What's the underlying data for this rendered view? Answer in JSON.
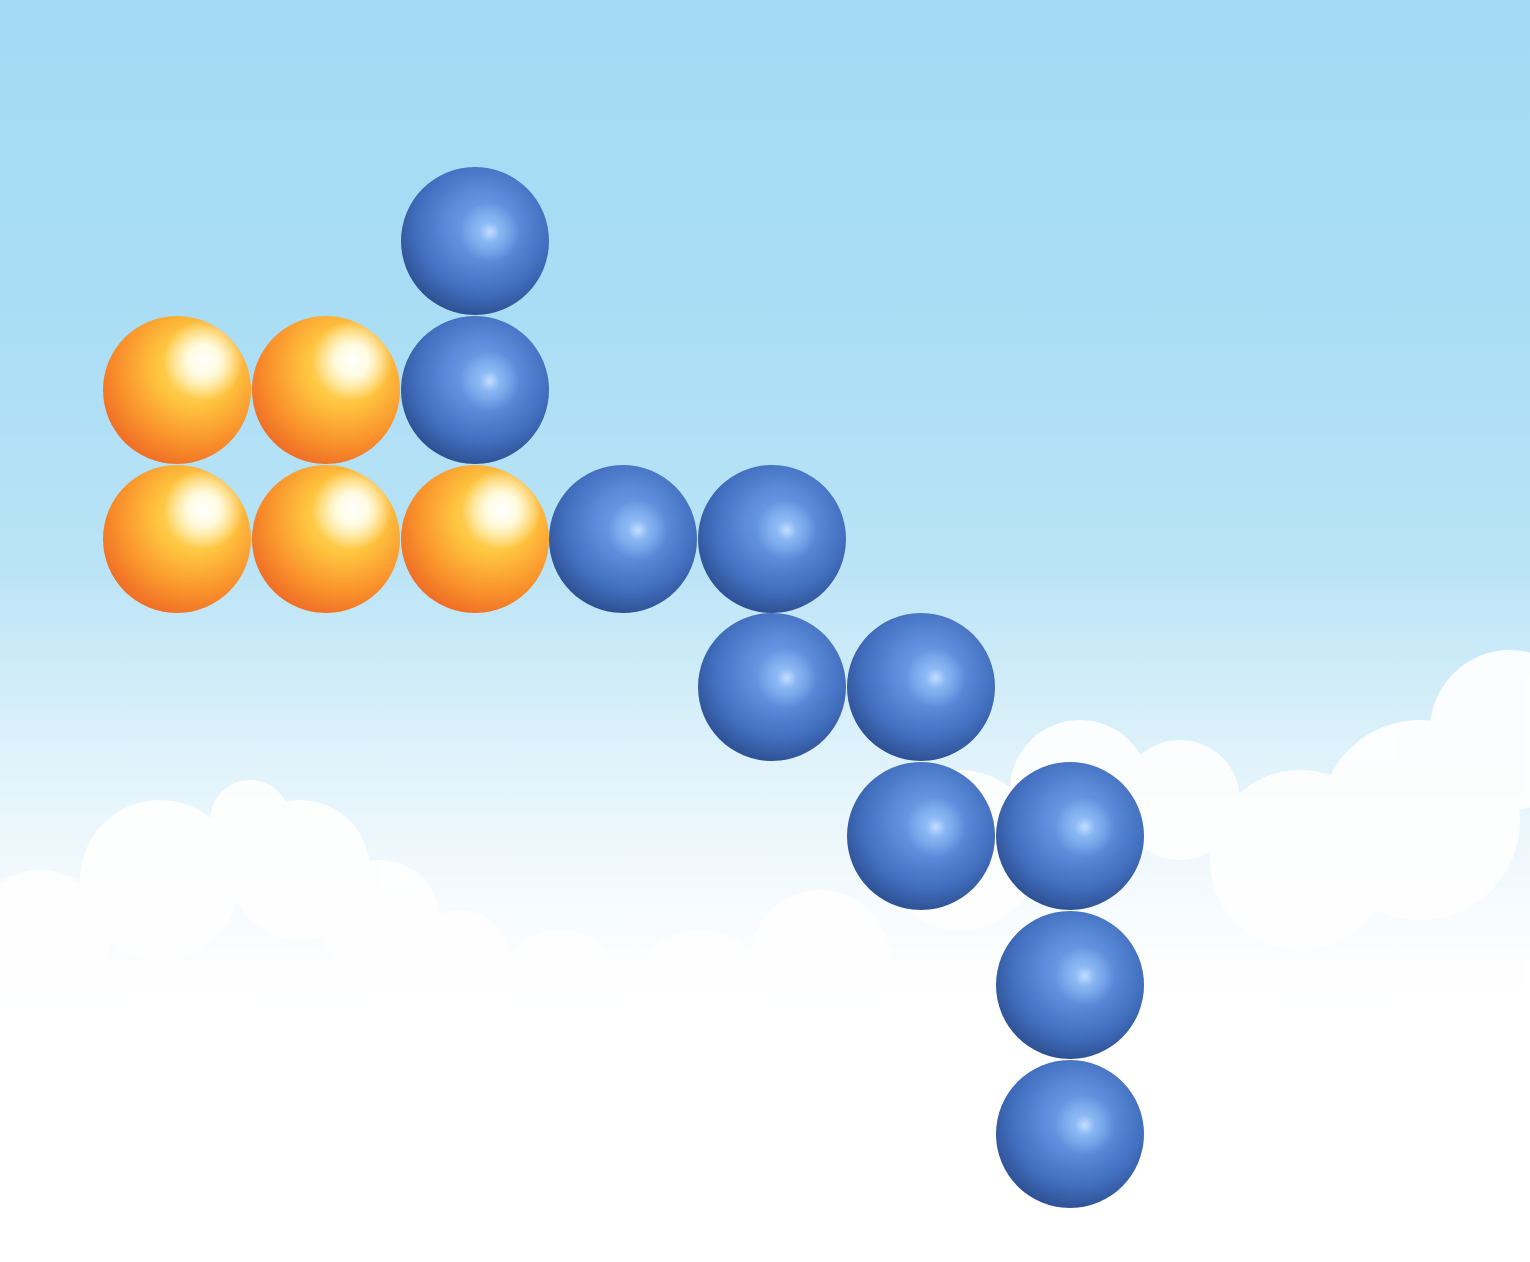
{
  "scene": {
    "sky_top_color": "#a3dbf4",
    "sky_bottom_color": "#ffffff",
    "cloud_color": "#ffffff"
  },
  "balls": [
    {
      "color": "blue",
      "col": 2,
      "row": 0
    },
    {
      "color": "orange",
      "col": 0,
      "row": 1
    },
    {
      "color": "orange",
      "col": 1,
      "row": 1
    },
    {
      "color": "blue",
      "col": 2,
      "row": 1
    },
    {
      "color": "orange",
      "col": 0,
      "row": 2
    },
    {
      "color": "orange",
      "col": 1,
      "row": 2
    },
    {
      "color": "orange",
      "col": 2,
      "row": 2
    },
    {
      "color": "blue",
      "col": 3,
      "row": 2
    },
    {
      "color": "blue",
      "col": 4,
      "row": 2
    },
    {
      "color": "blue",
      "col": 4,
      "row": 3
    },
    {
      "color": "blue",
      "col": 5,
      "row": 3
    },
    {
      "color": "blue",
      "col": 5,
      "row": 4
    },
    {
      "color": "blue",
      "col": 6,
      "row": 4
    },
    {
      "color": "blue",
      "col": 6,
      "row": 5
    },
    {
      "color": "blue",
      "col": 6,
      "row": 6
    }
  ]
}
